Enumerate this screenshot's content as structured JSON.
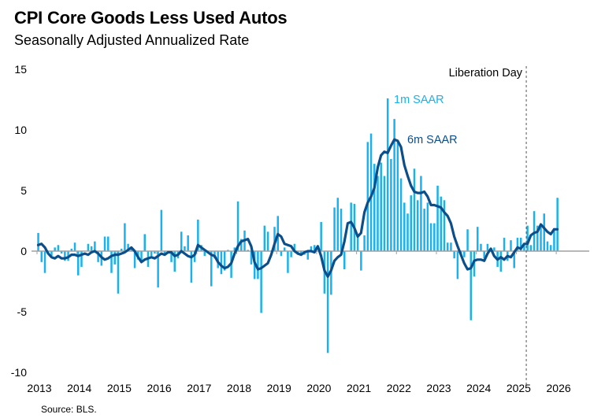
{
  "title": "CPI Core Goods Less Used Autos",
  "subtitle": "Seasonally Adjusted Annualized Rate",
  "source": "Source: BLS.",
  "chart_data": {
    "type": "bar+line",
    "title": "CPI Core Goods Less Used Autos",
    "subtitle": "Seasonally Adjusted Annualized Rate",
    "xlabel": "",
    "ylabel": "",
    "ylim": [
      -10,
      15
    ],
    "yticks": [
      "15",
      "10",
      "5",
      "0",
      "-5",
      "-10"
    ],
    "ytick_values": [
      15,
      10,
      5,
      0,
      -5,
      -10
    ],
    "xticks": [
      "2013",
      "2014",
      "2015",
      "2016",
      "2017",
      "2018",
      "2019",
      "2020",
      "2021",
      "2022",
      "2023",
      "2024",
      "2025",
      "2026"
    ],
    "start": "2013-01",
    "frequency": "monthly",
    "grid": false,
    "colors": {
      "bars": "#19b2ee",
      "line": "#0b4e8a",
      "zero_line": "#a0a0a0",
      "event_line": "#555555"
    },
    "annotations": {
      "event": {
        "label": "Liberation Day",
        "date": "2025-04"
      },
      "bar_label": "1m SAAR",
      "line_label": "6m SAAR"
    },
    "series": [
      {
        "name": "1m SAAR",
        "type": "bar",
        "values": [
          1.5,
          -0.9,
          -1.8,
          -0.2,
          -0.4,
          0.3,
          0.5,
          -0.2,
          -0.8,
          -0.8,
          0.2,
          0.7,
          -2.0,
          -1.3,
          0.0,
          0.6,
          0.4,
          0.8,
          -0.9,
          -1.2,
          1.2,
          1.2,
          -1.8,
          -1.1,
          -3.5,
          0.2,
          2.3,
          0.6,
          0.2,
          -1.4,
          -0.7,
          -0.8,
          1.4,
          -1.3,
          -0.4,
          -0.2,
          -3.0,
          3.4,
          -0.3,
          -0.2,
          -0.9,
          -1.7,
          -0.6,
          1.6,
          0.4,
          1.3,
          -2.6,
          -0.9,
          2.6,
          0.5,
          -0.4,
          -0.2,
          -2.9,
          -0.6,
          -1.4,
          -1.9,
          -1.6,
          0.1,
          -2.2,
          0.3,
          4.1,
          1.0,
          1.7,
          0.1,
          -1.1,
          -2.3,
          -2.3,
          -5.1,
          2.1,
          1.6,
          0.0,
          2.0,
          2.9,
          -0.4,
          0.3,
          -1.8,
          -0.5,
          0.6,
          -0.3,
          -0.3,
          -0.3,
          -0.7,
          0.4,
          0.5,
          0.0,
          2.4,
          -3.5,
          -8.4,
          -3.6,
          3.6,
          4.4,
          3.5,
          -1.5,
          0.0,
          4.0,
          3.9,
          1.4,
          -1.6,
          1.3,
          9.0,
          9.7,
          7.2,
          6.2,
          7.3,
          6.2,
          12.6,
          7.6,
          10.9,
          9.0,
          6.0,
          4.0,
          3.1,
          4.6,
          6.8,
          4.2,
          6.2,
          3.5,
          4.0,
          2.3,
          2.3,
          5.4,
          4.5,
          4.2,
          0.7,
          0.7,
          -0.6,
          -2.3,
          -0.4,
          -0.5,
          1.8,
          -5.7,
          -2.1,
          2.0,
          0.6,
          -0.6,
          0.6,
          0.0,
          0.3,
          -1.3,
          -1.7,
          1.1,
          -0.8,
          0.9,
          -1.4,
          1.1,
          1.1,
          0.5,
          2.1,
          0.5,
          3.3,
          2.1,
          2.0,
          3.1,
          0.8,
          0.5,
          1.9,
          4.4
        ]
      },
      {
        "name": "6m SAAR",
        "type": "line",
        "values": [
          0.5,
          0.6,
          0.3,
          -0.2,
          -0.5,
          -0.6,
          -0.4,
          -0.6,
          -0.6,
          -0.5,
          -0.3,
          -0.3,
          -0.4,
          -0.3,
          -0.2,
          -0.3,
          -0.1,
          0.0,
          -0.2,
          -0.5,
          -0.7,
          -0.6,
          -0.4,
          -0.3,
          -0.3,
          -0.2,
          -0.1,
          0.1,
          0.3,
          0.0,
          -0.5,
          -0.9,
          -0.7,
          -0.6,
          -0.5,
          -0.6,
          -0.4,
          -0.2,
          -0.3,
          -0.1,
          -0.1,
          -0.4,
          -0.3,
          0.0,
          -0.2,
          -0.4,
          -0.5,
          -0.3,
          0.5,
          0.3,
          0.1,
          -0.1,
          -0.3,
          -0.4,
          -0.9,
          -1.2,
          -1.4,
          -1.3,
          -1.0,
          -0.2,
          0.4,
          0.8,
          0.9,
          1.0,
          0.4,
          -0.9,
          -1.5,
          -1.4,
          -1.2,
          -1.0,
          -0.3,
          0.6,
          1.4,
          1.2,
          0.6,
          0.5,
          0.4,
          0.0,
          -0.2,
          -0.3,
          -0.1,
          0.0,
          0.0,
          -0.1,
          0.4,
          -0.4,
          -1.6,
          -2.1,
          -1.6,
          -0.8,
          -0.5,
          -0.3,
          0.8,
          2.3,
          2.4,
          1.9,
          1.2,
          1.5,
          3.2,
          4.0,
          4.5,
          5.2,
          6.9,
          7.9,
          8.2,
          8.1,
          8.7,
          9.2,
          9.1,
          8.6,
          7.1,
          6.2,
          5.4,
          4.9,
          4.8,
          4.8,
          4.9,
          4.5,
          3.8,
          3.8,
          3.7,
          3.6,
          3.2,
          2.9,
          2.3,
          1.2,
          0.4,
          -0.3,
          -1.0,
          -1.5,
          -1.4,
          -0.8,
          -0.7,
          -0.7,
          -0.8,
          -0.2,
          0.2,
          -0.4,
          -0.7,
          -0.5,
          -0.7,
          -0.4,
          -0.5,
          -0.1,
          0.3,
          0.2,
          0.6,
          0.6,
          1.3,
          1.5,
          1.6,
          2.2,
          1.9,
          1.6,
          1.4,
          1.8,
          1.8
        ]
      }
    ]
  }
}
